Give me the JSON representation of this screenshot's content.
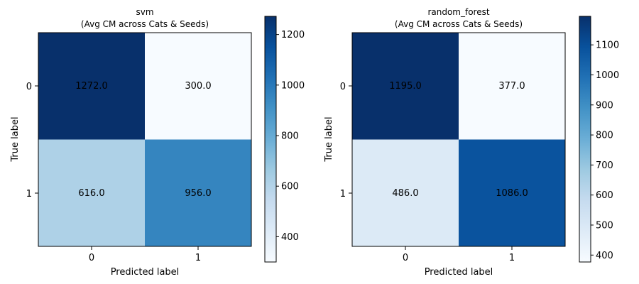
{
  "chart_data": [
    {
      "type": "heatmap",
      "title": "svm",
      "subtitle": "(Avg CM across Cats & Seeds)",
      "xlabel": "Predicted label",
      "ylabel": "True label",
      "x_categories": [
        "0",
        "1"
      ],
      "y_categories": [
        "0",
        "1"
      ],
      "matrix": [
        [
          1272.0,
          300.0
        ],
        [
          616.0,
          956.0
        ]
      ],
      "cell_labels": [
        [
          "1272.0",
          "300.0"
        ],
        [
          "616.0",
          "956.0"
        ]
      ],
      "colormap": "Blues",
      "color_range": [
        300,
        1272
      ],
      "colorbar_ticks": [
        "400",
        "600",
        "800",
        "1000",
        "1200"
      ]
    },
    {
      "type": "heatmap",
      "title": "random_forest",
      "subtitle": "(Avg CM across Cats & Seeds)",
      "xlabel": "Predicted label",
      "ylabel": "True label",
      "x_categories": [
        "0",
        "1"
      ],
      "y_categories": [
        "0",
        "1"
      ],
      "matrix": [
        [
          1195.0,
          377.0
        ],
        [
          486.0,
          1086.0
        ]
      ],
      "cell_labels": [
        [
          "1195.0",
          "377.0"
        ],
        [
          "486.0",
          "1086.0"
        ]
      ],
      "colormap": "Blues",
      "color_range": [
        377,
        1195
      ],
      "colorbar_ticks": [
        "400",
        "500",
        "600",
        "700",
        "800",
        "900",
        "1000",
        "1100"
      ]
    }
  ],
  "colors": {
    "blues_light": "#f7fbff",
    "blues_dark": "#08306b",
    "text_on_dark": "#f7fbff",
    "text_on_light": "#08306b"
  }
}
